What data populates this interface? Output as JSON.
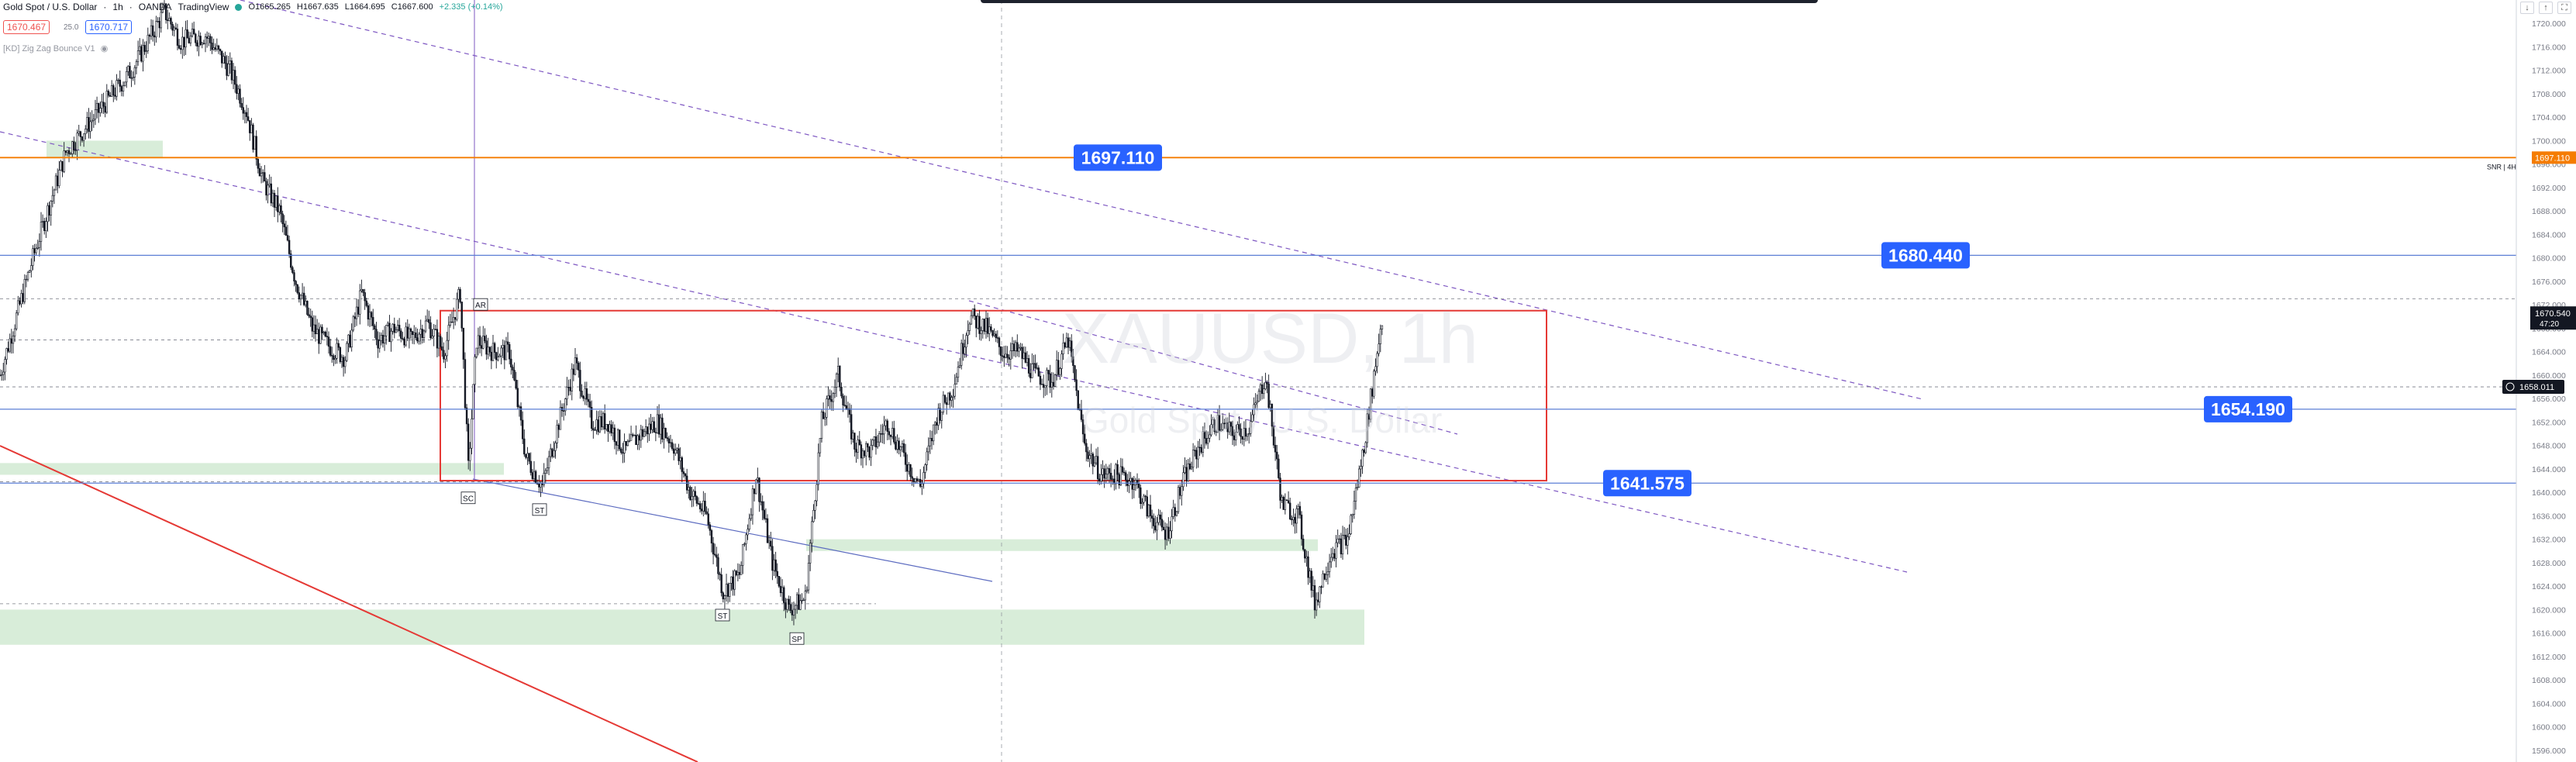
{
  "header": {
    "symbol": "Gold Spot / U.S. Dollar",
    "interval": "1h",
    "broker": "OANDA",
    "platform": "TradingView",
    "open": "O1665.265",
    "high": "H1667.635",
    "low": "L1664.695",
    "close": "C1667.600",
    "change": "+2.335 (+0.14%)",
    "bid": "1670.467",
    "spread": "25.0",
    "ask": "1670.717",
    "indicator": "[KD] Zig Zag Bounce V1"
  },
  "watermark": {
    "symbol": "XAUUSD, 1h",
    "description": "Gold Spot / U.S. Dollar"
  },
  "colors": {
    "candle": "#131722",
    "orange_line": "#f57c00",
    "blue_line": "#2962ff",
    "red_line": "#e53935",
    "green_zone": "#c8e6c9",
    "label_bg": "#2962ff"
  },
  "chart_data": {
    "type": "candlestick",
    "title": "Gold Spot / U.S. Dollar, 1h, OANDA",
    "y_axis_side": "right",
    "ylim": [
      1594,
      1724
    ],
    "y_ticks": [
      1596,
      1600,
      1604,
      1608,
      1612,
      1616,
      1620,
      1624,
      1628,
      1632,
      1636,
      1640,
      1644,
      1648,
      1652,
      1656,
      1660,
      1664,
      1668,
      1672,
      1676,
      1680,
      1684,
      1688,
      1692,
      1696,
      1700,
      1704,
      1708,
      1712,
      1716,
      1720
    ],
    "y_tick_labels": [
      "1596.000",
      "1600.000",
      "1604.000",
      "1608.000",
      "1612.000",
      "1616.000",
      "1620.000",
      "1624.000",
      "1628.000",
      "1632.000",
      "1636.000",
      "1640.000",
      "1644.000",
      "1648.000",
      "1652.000",
      "1656.000",
      "1660.000",
      "1664.000",
      "1668.000",
      "1672.000",
      "1676.000",
      "1680.000",
      "1684.000",
      "1688.000",
      "1692.000",
      "1696.000",
      "1700.000",
      "1704.000",
      "1708.000",
      "1712.000",
      "1716.000",
      "1720.000"
    ],
    "price_path": [
      [
        0,
        1660
      ],
      [
        20,
        1680
      ],
      [
        40,
        1698
      ],
      [
        60,
        1705
      ],
      [
        80,
        1712
      ],
      [
        100,
        1722
      ],
      [
        110,
        1717
      ],
      [
        125,
        1718
      ],
      [
        140,
        1712
      ],
      [
        150,
        1705
      ],
      [
        160,
        1693
      ],
      [
        170,
        1688
      ],
      [
        180,
        1676
      ],
      [
        190,
        1668
      ],
      [
        200,
        1665
      ],
      [
        210,
        1663
      ],
      [
        220,
        1674
      ],
      [
        230,
        1666
      ],
      [
        240,
        1668
      ],
      [
        250,
        1666
      ],
      [
        260,
        1669
      ],
      [
        270,
        1664
      ],
      [
        280,
        1674
      ],
      [
        285,
        1644
      ],
      [
        290,
        1666
      ],
      [
        300,
        1664
      ],
      [
        310,
        1664
      ],
      [
        320,
        1646
      ],
      [
        330,
        1641
      ],
      [
        340,
        1652
      ],
      [
        350,
        1662
      ],
      [
        360,
        1652
      ],
      [
        370,
        1652
      ],
      [
        380,
        1647
      ],
      [
        390,
        1650
      ],
      [
        400,
        1652
      ],
      [
        410,
        1648
      ],
      [
        420,
        1640
      ],
      [
        430,
        1636
      ],
      [
        440,
        1623
      ],
      [
        450,
        1626
      ],
      [
        460,
        1643
      ],
      [
        470,
        1628
      ],
      [
        480,
        1620
      ],
      [
        490,
        1622
      ],
      [
        500,
        1652
      ],
      [
        510,
        1660
      ],
      [
        520,
        1648
      ],
      [
        530,
        1647
      ],
      [
        540,
        1652
      ],
      [
        550,
        1646
      ],
      [
        560,
        1641
      ],
      [
        570,
        1653
      ],
      [
        580,
        1658
      ],
      [
        590,
        1670
      ],
      [
        600,
        1668
      ],
      [
        610,
        1664
      ],
      [
        620,
        1664
      ],
      [
        630,
        1660
      ],
      [
        640,
        1659
      ],
      [
        650,
        1666
      ],
      [
        660,
        1648
      ],
      [
        670,
        1643
      ],
      [
        680,
        1643
      ],
      [
        690,
        1642
      ],
      [
        700,
        1636
      ],
      [
        710,
        1633
      ],
      [
        720,
        1642
      ],
      [
        730,
        1648
      ],
      [
        740,
        1652
      ],
      [
        750,
        1650
      ],
      [
        760,
        1651
      ],
      [
        770,
        1660
      ],
      [
        780,
        1638
      ],
      [
        790,
        1636
      ],
      [
        800,
        1621
      ],
      [
        810,
        1630
      ],
      [
        820,
        1632
      ],
      [
        830,
        1648
      ],
      [
        840,
        1668
      ],
      [
        842,
        1670.54
      ]
    ],
    "horizontal_levels": [
      {
        "price": 1697.11,
        "label": "1697.110",
        "color": "orange"
      },
      {
        "price": 1680.44,
        "label": "1680.440",
        "color": "blue"
      },
      {
        "price": 1654.19,
        "label": "1654.190",
        "color": "blue"
      },
      {
        "price": 1641.575,
        "label": "1641.575",
        "color": "blue"
      }
    ],
    "axis_marks": [
      {
        "price": 1697.11,
        "label": "1697.110",
        "tag": "SNR | 4H"
      },
      {
        "price": 1670.54,
        "label": "1670.540",
        "sub": "47:20"
      },
      {
        "price": 1658.011,
        "label": "1658.011"
      }
    ],
    "range_box": {
      "top": 1671,
      "bottom": 1642
    },
    "wyckoff_labels": [
      {
        "text": "AR",
        "price": 1672
      },
      {
        "text": "SC",
        "price": 1639
      },
      {
        "text": "ST",
        "price": 1637
      },
      {
        "text": "ST",
        "price": 1619
      },
      {
        "text": "SP",
        "price": 1615
      }
    ]
  }
}
